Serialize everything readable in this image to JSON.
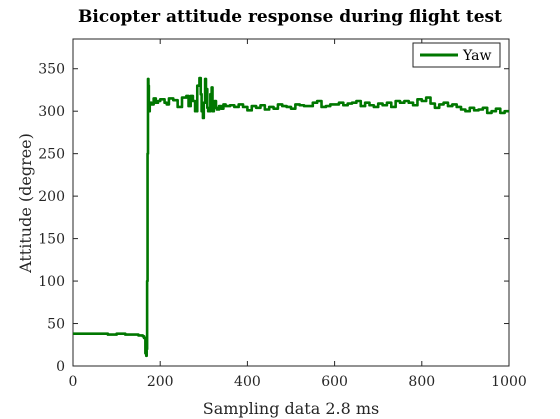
{
  "chart_data": {
    "type": "line",
    "title": "Bicopter attitude response during flight test",
    "xlabel": "Sampling data 2.8 ms",
    "ylabel": "Attitude (degree)",
    "xlim": [
      0,
      1000
    ],
    "ylim": [
      0,
      385
    ],
    "xticks": [
      0,
      200,
      400,
      600,
      800,
      1000
    ],
    "yticks": [
      0,
      50,
      100,
      150,
      200,
      250,
      300,
      350
    ],
    "grid": false,
    "legend_position": "top-right",
    "series": [
      {
        "name": "Yaw",
        "color": "#007700",
        "x": [
          0,
          20,
          40,
          60,
          80,
          100,
          120,
          140,
          150,
          160,
          163,
          166,
          168,
          169,
          170,
          171,
          172,
          173,
          174,
          176,
          180,
          185,
          190,
          195,
          200,
          210,
          215,
          220,
          230,
          240,
          250,
          260,
          265,
          270,
          275,
          280,
          285,
          290,
          293,
          295,
          298,
          300,
          303,
          305,
          308,
          310,
          315,
          318,
          320,
          323,
          325,
          328,
          330,
          335,
          340,
          345,
          350,
          360,
          370,
          380,
          390,
          400,
          410,
          420,
          430,
          440,
          450,
          460,
          470,
          480,
          490,
          500,
          510,
          520,
          530,
          540,
          550,
          560,
          570,
          580,
          590,
          600,
          610,
          620,
          630,
          640,
          650,
          660,
          670,
          680,
          690,
          700,
          710,
          720,
          730,
          740,
          750,
          760,
          770,
          780,
          790,
          800,
          810,
          820,
          830,
          840,
          850,
          860,
          870,
          880,
          890,
          900,
          910,
          920,
          930,
          940,
          950,
          960,
          970,
          980,
          990,
          1000
        ],
        "values": [
          38,
          38,
          38,
          38,
          37,
          38,
          37,
          37,
          36,
          35,
          33,
          15,
          12,
          20,
          100,
          250,
          338,
          330,
          300,
          310,
          308,
          315,
          310,
          312,
          314,
          310,
          308,
          315,
          313,
          305,
          316,
          318,
          306,
          318,
          312,
          300,
          330,
          339,
          320,
          300,
          292,
          310,
          338,
          326,
          304,
          300,
          320,
          328,
          300,
          308,
          312,
          304,
          302,
          306,
          303,
          308,
          306,
          307,
          305,
          308,
          305,
          301,
          306,
          304,
          307,
          302,
          305,
          303,
          308,
          306,
          305,
          303,
          308,
          307,
          306,
          306,
          310,
          312,
          305,
          306,
          308,
          308,
          310,
          307,
          309,
          310,
          312,
          306,
          310,
          307,
          305,
          309,
          307,
          310,
          305,
          312,
          310,
          312,
          310,
          307,
          314,
          312,
          316,
          309,
          304,
          308,
          310,
          306,
          308,
          305,
          302,
          300,
          304,
          301,
          302,
          304,
          298,
          300,
          303,
          298,
          300,
          300
        ]
      }
    ]
  }
}
